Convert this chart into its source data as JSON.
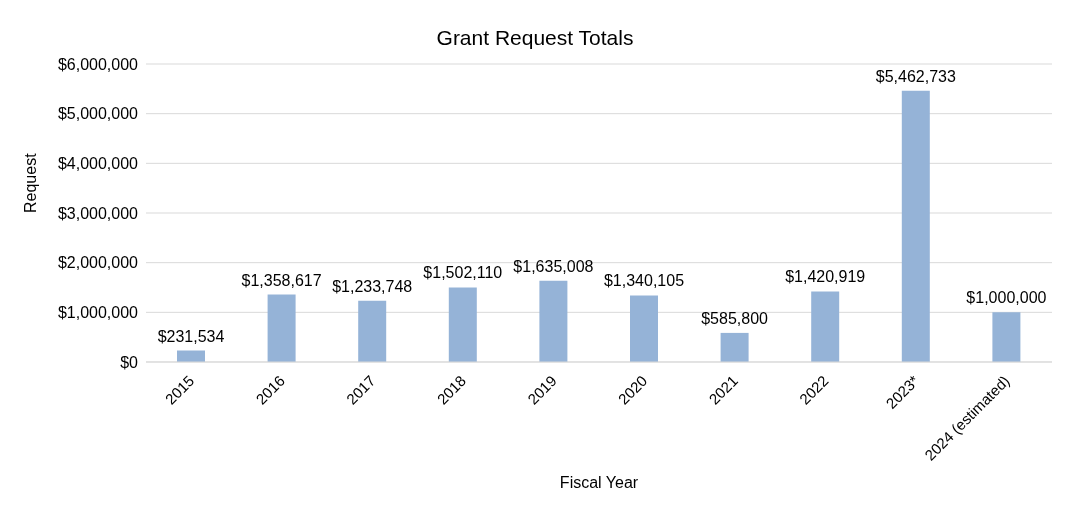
{
  "chart_data": {
    "type": "bar",
    "title": "Grant Request Totals",
    "xlabel": "Fiscal Year",
    "ylabel": "Request",
    "categories": [
      "2015",
      "2016",
      "2017",
      "2018",
      "2019",
      "2020",
      "2021",
      "2022",
      "2023*",
      "2024 (estimated)"
    ],
    "values": [
      231534,
      1358617,
      1233748,
      1502110,
      1635008,
      1340105,
      585800,
      1420919,
      5462733,
      1000000
    ],
    "value_labels": [
      "$231,534",
      "$1,358,617",
      "$1,233,748",
      "$1,502,110",
      "$1,635,008",
      "$1,340,105",
      "$585,800",
      "$1,420,919",
      "$5,462,733",
      "$1,000,000"
    ],
    "color": "#95b3d7",
    "ylim": [
      0,
      6000000
    ],
    "yticks": [
      {
        "value": 0,
        "label": "$0"
      },
      {
        "value": 1000000,
        "label": "$1,000,000"
      },
      {
        "value": 2000000,
        "label": "$2,000,000"
      },
      {
        "value": 3000000,
        "label": "$3,000,000"
      },
      {
        "value": 4000000,
        "label": "$4,000,000"
      },
      {
        "value": 5000000,
        "label": "$5,000,000"
      },
      {
        "value": 6000000,
        "label": "$6,000,000"
      }
    ],
    "grid": "y",
    "legend": false
  }
}
